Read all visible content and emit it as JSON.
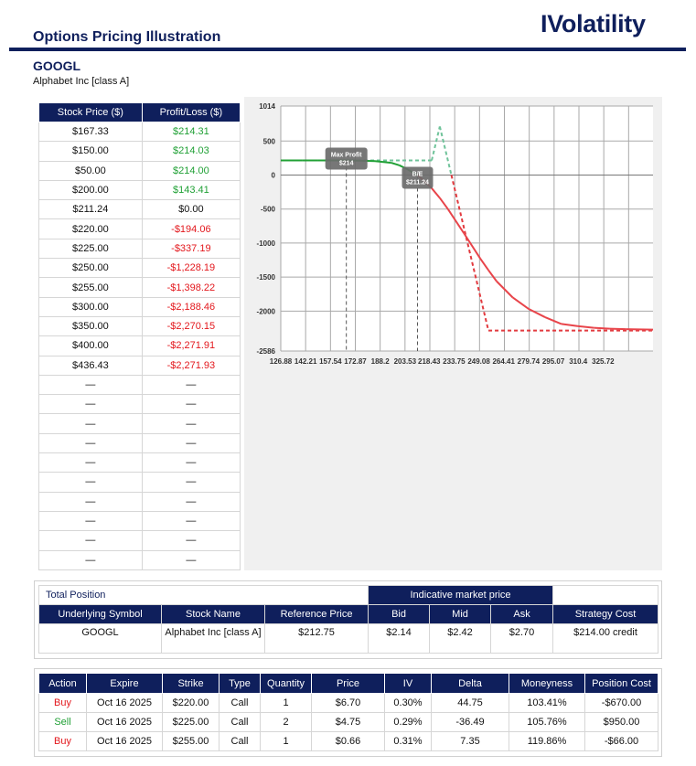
{
  "header": {
    "title": "Options Pricing Illustration",
    "brand": "IVolatility"
  },
  "stock": {
    "ticker": "GOOGL",
    "name": "Alphabet Inc [class A]"
  },
  "scenario_table": {
    "headers": [
      "Stock Price ($)",
      "Profit/Loss ($)"
    ],
    "rows": [
      [
        "$167.33",
        "$214.31",
        "pos"
      ],
      [
        "$150.00",
        "$214.03",
        "pos"
      ],
      [
        "$50.00",
        "$214.00",
        "pos"
      ],
      [
        "$200.00",
        "$143.41",
        "pos"
      ],
      [
        "$211.24",
        "$0.00",
        "zero"
      ],
      [
        "$220.00",
        "-$194.06",
        "neg"
      ],
      [
        "$225.00",
        "-$337.19",
        "neg"
      ],
      [
        "$250.00",
        "-$1,228.19",
        "neg"
      ],
      [
        "$255.00",
        "-$1,398.22",
        "neg"
      ],
      [
        "$300.00",
        "-$2,188.46",
        "neg"
      ],
      [
        "$350.00",
        "-$2,270.15",
        "neg"
      ],
      [
        "$400.00",
        "-$2,271.91",
        "neg"
      ],
      [
        "$436.43",
        "-$2,271.93",
        "neg"
      ],
      [
        "—",
        "—",
        "zero"
      ],
      [
        "—",
        "—",
        "zero"
      ],
      [
        "—",
        "—",
        "zero"
      ],
      [
        "—",
        "—",
        "zero"
      ],
      [
        "—",
        "—",
        "zero"
      ],
      [
        "—",
        "—",
        "zero"
      ],
      [
        "—",
        "—",
        "zero"
      ],
      [
        "—",
        "—",
        "zero"
      ],
      [
        "—",
        "—",
        "zero"
      ],
      [
        "—",
        "—",
        "zero"
      ]
    ]
  },
  "chart_data": {
    "type": "line",
    "ylim": [
      -2586,
      1014
    ],
    "xlim": [
      126.88,
      356.55
    ],
    "y_ticks": [
      1014,
      500,
      0,
      -500,
      -1000,
      -1500,
      -2000,
      -2586
    ],
    "x_ticks": [
      "126.88",
      "142.21",
      "157.54",
      "172.87",
      "188.2",
      "203.53",
      "218.43",
      "233.75",
      "249.08",
      "264.41",
      "279.74",
      "295.07",
      "310.4",
      "325.72"
    ],
    "grid": true,
    "annotations": [
      {
        "text_line1": "Max Profit",
        "text_line2": "$214",
        "x": 167.33,
        "y": 214
      },
      {
        "text_line1": "B/E",
        "text_line2": "$211.24",
        "x": 211.24,
        "y": 0
      }
    ],
    "series": [
      {
        "style": "solid",
        "x": [
          126.88,
          140,
          150,
          160,
          167.33,
          175,
          185,
          195,
          200,
          205,
          211.24,
          215,
          220,
          225,
          230,
          240,
          250,
          255,
          260,
          270,
          280,
          290,
          300,
          310,
          320,
          330,
          340,
          356.55
        ],
        "y": [
          214,
          214.05,
          214.03,
          214.1,
          214.31,
          212,
          205,
          180,
          143.41,
          85,
          0,
          -80,
          -194.06,
          -337.19,
          -500,
          -860,
          -1228.19,
          -1398.22,
          -1560,
          -1800,
          -1970,
          -2090,
          -2188.46,
          -2220,
          -2245,
          -2258,
          -2266,
          -2271.93
        ]
      },
      {
        "style": "dashed",
        "x": [
          126.88,
          220,
          225,
          255,
          356.55
        ],
        "y": [
          214,
          214,
          714,
          -2286,
          -2286
        ]
      }
    ]
  },
  "total_position": {
    "title": "Total Position",
    "market_header": "Indicative market price",
    "headers": [
      "Underlying Symbol",
      "Stock Name",
      "Reference Price",
      "Bid",
      "Mid",
      "Ask",
      "Strategy Cost"
    ],
    "values": [
      "GOOGL",
      "Alphabet Inc [class A]",
      "$212.75",
      "$2.14",
      "$2.42",
      "$2.70",
      "$214.00 credit"
    ]
  },
  "legs": {
    "headers": [
      "Action",
      "Expire",
      "Strike",
      "Type",
      "Quantity",
      "Price",
      "IV",
      "Delta",
      "Moneyness",
      "Position Cost"
    ],
    "rows": [
      [
        "Buy",
        "Oct 16 2025",
        "$220.00",
        "Call",
        "1",
        "$6.70",
        "0.30%",
        "44.75",
        "103.41%",
        "-$670.00"
      ],
      [
        "Sell",
        "Oct 16 2025",
        "$225.00",
        "Call",
        "2",
        "$4.75",
        "0.29%",
        "-36.49",
        "105.76%",
        "$950.00"
      ],
      [
        "Buy",
        "Oct 16 2025",
        "$255.00",
        "Call",
        "1",
        "$0.66",
        "0.31%",
        "7.35",
        "119.86%",
        "-$66.00"
      ]
    ]
  },
  "colors": {
    "navy": "#0f1f5c",
    "profit": "#20a035",
    "loss": "#e3171c",
    "today_line": "#e8444a",
    "expiry_profit": "#6fc39a",
    "expiry_loss": "#e23a3f"
  }
}
